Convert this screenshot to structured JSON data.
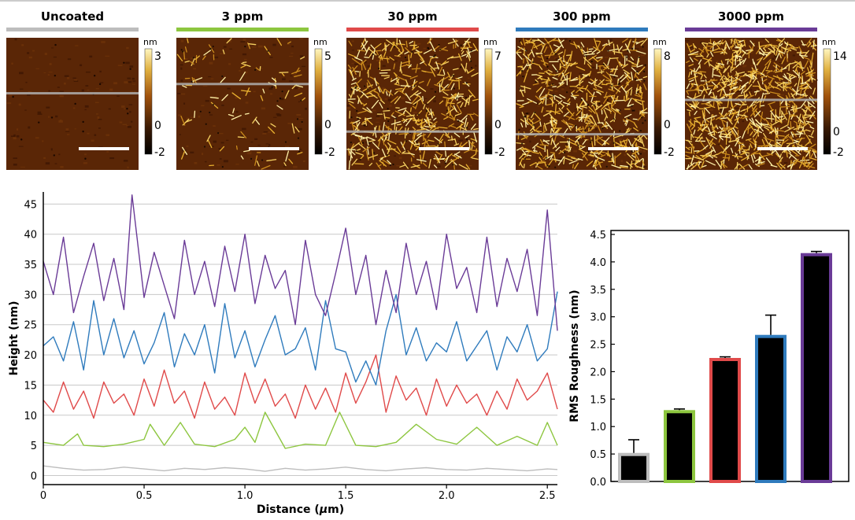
{
  "afm_panels": [
    {
      "title": "Uncoated",
      "color": "#bdbdbd",
      "scale_unit": "nm",
      "scale_max": "3",
      "scale_zero": "0",
      "scale_min": "-2",
      "fiber_density": 0
    },
    {
      "title": "3 ppm",
      "color": "#8dc63f",
      "scale_unit": "nm",
      "scale_max": "5",
      "scale_zero": "0",
      "scale_min": "-2",
      "fiber_density": 90
    },
    {
      "title": "30 ppm",
      "color": "#e04a4a",
      "scale_unit": "nm",
      "scale_max": "7",
      "scale_zero": "0",
      "scale_min": "-2",
      "fiber_density": 520
    },
    {
      "title": "300 ppm",
      "color": "#2f7bbd",
      "scale_unit": "nm",
      "scale_max": "8",
      "scale_zero": "0",
      "scale_min": "-2",
      "fiber_density": 640
    },
    {
      "title": "3000 ppm",
      "color": "#6a3b97",
      "scale_unit": "nm",
      "scale_max": "14",
      "scale_zero": "0",
      "scale_min": "-2",
      "fiber_density": 900
    }
  ],
  "chart_data": [
    {
      "type": "line",
      "xlabel_prefix": "Distance (",
      "xlabel_unit": "μ",
      "xlabel_suffix": "m)",
      "ylabel": "Height (nm)",
      "xlim": [
        0,
        2.55
      ],
      "ylim": [
        -1.5,
        47
      ],
      "xticks": [
        "0",
        "0.5",
        "1.0",
        "1.5",
        "2.0",
        "2.5"
      ],
      "yticks": [
        "0",
        "5",
        "10",
        "15",
        "20",
        "25",
        "30",
        "35",
        "40",
        "45"
      ],
      "grid": true,
      "series": [
        {
          "color": "#bdbdbd",
          "x": [
            0,
            0.1,
            0.2,
            0.3,
            0.4,
            0.5,
            0.6,
            0.7,
            0.8,
            0.9,
            1.0,
            1.1,
            1.2,
            1.3,
            1.4,
            1.5,
            1.6,
            1.7,
            1.8,
            1.9,
            2.0,
            2.1,
            2.2,
            2.3,
            2.4,
            2.5,
            2.55
          ],
          "y": [
            1.6,
            1.2,
            0.9,
            1.0,
            1.4,
            1.1,
            0.8,
            1.2,
            1.0,
            1.3,
            1.1,
            0.7,
            1.2,
            0.9,
            1.1,
            1.4,
            1.0,
            0.8,
            1.1,
            1.3,
            1.0,
            0.9,
            1.2,
            1.0,
            0.8,
            1.1,
            1.0
          ]
        },
        {
          "color": "#8dc63f",
          "x": [
            0,
            0.1,
            0.17,
            0.2,
            0.3,
            0.4,
            0.5,
            0.53,
            0.6,
            0.68,
            0.75,
            0.85,
            0.95,
            1.0,
            1.05,
            1.1,
            1.2,
            1.3,
            1.4,
            1.47,
            1.55,
            1.65,
            1.75,
            1.85,
            1.95,
            2.05,
            2.15,
            2.25,
            2.35,
            2.45,
            2.5,
            2.55
          ],
          "y": [
            5.5,
            5.0,
            6.9,
            5.0,
            4.8,
            5.2,
            6.0,
            8.5,
            5.0,
            8.8,
            5.2,
            4.8,
            6.0,
            8.0,
            5.5,
            10.5,
            4.5,
            5.2,
            5.0,
            10.5,
            5.0,
            4.8,
            5.5,
            8.5,
            6.0,
            5.2,
            8.0,
            5.0,
            6.5,
            5.0,
            8.8,
            5.0
          ]
        },
        {
          "color": "#e04a4a",
          "x": [
            0,
            0.05,
            0.1,
            0.15,
            0.2,
            0.25,
            0.3,
            0.35,
            0.4,
            0.45,
            0.5,
            0.55,
            0.6,
            0.65,
            0.7,
            0.75,
            0.8,
            0.85,
            0.9,
            0.95,
            1.0,
            1.05,
            1.1,
            1.15,
            1.2,
            1.25,
            1.3,
            1.35,
            1.4,
            1.45,
            1.5,
            1.55,
            1.6,
            1.65,
            1.7,
            1.75,
            1.8,
            1.85,
            1.9,
            1.95,
            2.0,
            2.05,
            2.1,
            2.15,
            2.2,
            2.25,
            2.3,
            2.35,
            2.4,
            2.45,
            2.5,
            2.55
          ],
          "y": [
            12.5,
            10.5,
            15.5,
            11.0,
            14.0,
            9.5,
            15.5,
            12.0,
            13.5,
            10.0,
            16.0,
            11.5,
            17.5,
            12.0,
            14.0,
            9.5,
            15.5,
            11.0,
            13.0,
            10.0,
            17.0,
            12.0,
            16.0,
            11.5,
            13.5,
            9.5,
            15.0,
            11.0,
            14.5,
            10.5,
            17.0,
            12.0,
            15.5,
            20.0,
            10.5,
            16.5,
            12.5,
            14.5,
            10.0,
            16.0,
            11.5,
            15.0,
            12.0,
            13.5,
            10.0,
            14.0,
            11.0,
            16.0,
            12.5,
            14.0,
            17.0,
            11.0
          ]
        },
        {
          "color": "#2f7bbd",
          "x": [
            0,
            0.05,
            0.1,
            0.15,
            0.2,
            0.25,
            0.3,
            0.35,
            0.4,
            0.45,
            0.5,
            0.55,
            0.6,
            0.65,
            0.7,
            0.75,
            0.8,
            0.85,
            0.9,
            0.95,
            1.0,
            1.05,
            1.1,
            1.15,
            1.2,
            1.25,
            1.3,
            1.35,
            1.4,
            1.45,
            1.5,
            1.55,
            1.6,
            1.65,
            1.7,
            1.75,
            1.8,
            1.85,
            1.9,
            1.95,
            2.0,
            2.05,
            2.1,
            2.15,
            2.2,
            2.25,
            2.3,
            2.35,
            2.4,
            2.45,
            2.5,
            2.55
          ],
          "y": [
            21.5,
            23.0,
            19.0,
            25.5,
            17.5,
            29.0,
            20.0,
            26.0,
            19.5,
            24.0,
            18.5,
            22.0,
            27.0,
            18.0,
            23.5,
            20.0,
            25.0,
            17.0,
            28.5,
            19.5,
            24.0,
            18.0,
            22.5,
            26.5,
            20.0,
            21.0,
            24.5,
            17.5,
            29.0,
            21.0,
            20.5,
            15.5,
            19.0,
            15.0,
            24.0,
            30.0,
            20.0,
            24.5,
            19.0,
            22.0,
            20.5,
            25.5,
            19.0,
            21.5,
            24.0,
            17.5,
            23.0,
            20.5,
            25.0,
            19.0,
            21.0,
            30.5
          ]
        },
        {
          "color": "#6a3b97",
          "x": [
            0,
            0.05,
            0.1,
            0.15,
            0.2,
            0.25,
            0.3,
            0.35,
            0.4,
            0.44,
            0.5,
            0.55,
            0.6,
            0.65,
            0.7,
            0.75,
            0.8,
            0.85,
            0.9,
            0.95,
            1.0,
            1.05,
            1.1,
            1.15,
            1.2,
            1.25,
            1.3,
            1.35,
            1.4,
            1.45,
            1.5,
            1.55,
            1.6,
            1.65,
            1.7,
            1.75,
            1.8,
            1.85,
            1.9,
            1.95,
            2.0,
            2.05,
            2.1,
            2.15,
            2.2,
            2.25,
            2.3,
            2.35,
            2.4,
            2.45,
            2.5,
            2.55
          ],
          "y": [
            35.5,
            30.0,
            39.5,
            27.0,
            33.0,
            38.5,
            29.0,
            36.0,
            27.5,
            46.5,
            29.5,
            37.0,
            31.5,
            26.0,
            39.0,
            30.0,
            35.5,
            28.0,
            38.0,
            30.5,
            40.0,
            28.5,
            36.5,
            31.0,
            34.0,
            25.0,
            39.0,
            30.0,
            26.5,
            33.5,
            41.0,
            30.0,
            36.5,
            25.0,
            34.0,
            27.0,
            38.5,
            30.0,
            35.5,
            27.5,
            40.0,
            31.0,
            34.5,
            27.0,
            39.5,
            28.0,
            36.0,
            30.5,
            37.5,
            26.5,
            44.0,
            24.0
          ]
        }
      ]
    },
    {
      "type": "bar",
      "ylabel": "RMS Roughness (nm)",
      "ylim": [
        0,
        4.5
      ],
      "yticks": [
        "0.0",
        "0.5",
        "1.0",
        "1.5",
        "2.0",
        "2.5",
        "3.0",
        "3.5",
        "4.0",
        "4.5"
      ],
      "grid": false,
      "bars": [
        {
          "color": "#bdbdbd",
          "value": 0.52,
          "error": 0.24
        },
        {
          "color": "#8dc63f",
          "value": 1.3,
          "error": 0.02
        },
        {
          "color": "#e04a4a",
          "value": 2.25,
          "error": 0.02
        },
        {
          "color": "#2f7bbd",
          "value": 2.67,
          "error": 0.36
        },
        {
          "color": "#6a3b97",
          "value": 4.16,
          "error": 0.03
        }
      ]
    }
  ]
}
